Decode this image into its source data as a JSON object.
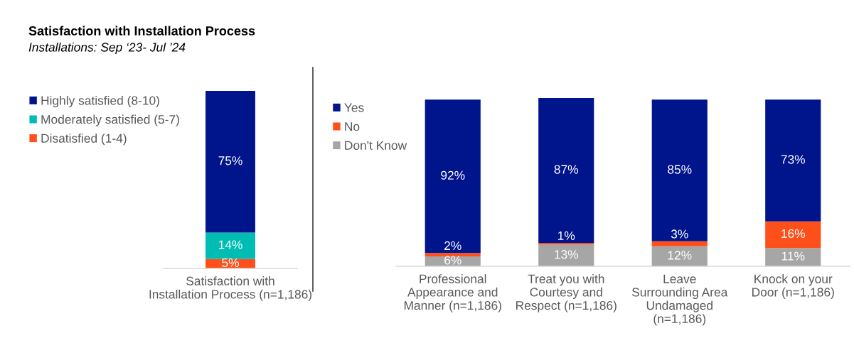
{
  "chart_data": [
    {
      "type": "bar",
      "title": "Satisfaction with Installation Process",
      "subtitle": "Installations: Sep ‘23- Jul ’24",
      "stacked": true,
      "legend": "top left",
      "tick_labels": "x",
      "categories": [
        "Satisfaction with\nInstallation Process (n=1,186)"
      ],
      "series": [
        {
          "name": "Disatisfied (1-4)",
          "color": "#ff4f1a",
          "values": [
            5
          ],
          "value_labels": [
            "5%"
          ]
        },
        {
          "name": "Moderately satisfied (5-7)",
          "color": "#00bdb4",
          "values": [
            14
          ],
          "value_labels": [
            "14%"
          ]
        },
        {
          "name": "Highly satisfied (8-10)",
          "color": "#00148c",
          "values": [
            75
          ],
          "value_labels": [
            "75%"
          ]
        }
      ]
    },
    {
      "type": "bar",
      "stacked": true,
      "legend": "top left",
      "tick_labels": "x",
      "categories": [
        "Professional\nAppearance and\nManner (n=1,186)",
        "Treat you with\nCourtesy and\nRespect (n=1,186)",
        "Leave\nSurrounding Area\nUndamaged\n(n=1,186)",
        "Knock on your\nDoor (n=1,186)"
      ],
      "series": [
        {
          "name": "Don't Know",
          "color": "#a6a6a6",
          "values": [
            6,
            13,
            12,
            11
          ],
          "value_labels": [
            "6%",
            "13%",
            "12%",
            "11%"
          ]
        },
        {
          "name": "No",
          "color": "#ff4f1a",
          "values": [
            2,
            1,
            3,
            16
          ],
          "value_labels": [
            "2%",
            "1%",
            "3%",
            "16%"
          ]
        },
        {
          "name": "Yes",
          "color": "#00148c",
          "values": [
            92,
            87,
            85,
            73
          ],
          "value_labels": [
            "92%",
            "87%",
            "85%",
            "73%"
          ]
        }
      ]
    }
  ]
}
